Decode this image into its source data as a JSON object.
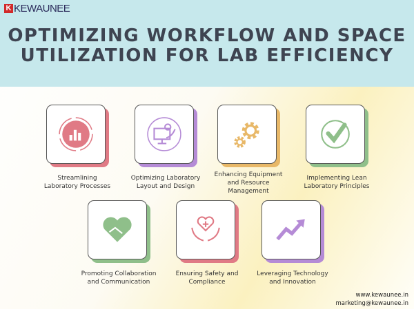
{
  "logo": {
    "brand": "KEWAUNEE",
    "mark": "K"
  },
  "title": [
    "OPTIMIZING WORKFLOW AND SPACE",
    "UTILIZATION FOR LAB EFFICIENCY"
  ],
  "items": [
    {
      "label": [
        "Streamlining",
        "Laboratory Processes"
      ],
      "icon": "bar-chart-icon",
      "color": "#e07a85"
    },
    {
      "label": [
        "Optimizing Laboratory",
        "Layout and Design"
      ],
      "icon": "monitor-gear-icon",
      "color": "#b58bd6"
    },
    {
      "label": [
        "Enhancing Equipment",
        "and Resource",
        "Management"
      ],
      "icon": "gears-icon",
      "color": "#e8b868"
    },
    {
      "label": [
        "Implementing Lean",
        "Laboratory Principles"
      ],
      "icon": "checkmark-icon",
      "color": "#8fbf8a"
    },
    {
      "label": [
        "Promoting Collaboration",
        "and Communication"
      ],
      "icon": "handshake-heart-icon",
      "color": "#8fbf8a"
    },
    {
      "label": [
        "Ensuring Safety and",
        "Compliance"
      ],
      "icon": "hands-heart-icon",
      "color": "#e07a85"
    },
    {
      "label": [
        "Leveraging Technology",
        "and Innovation"
      ],
      "icon": "trend-arrow-icon",
      "color": "#b58bd6"
    }
  ],
  "contact": {
    "website": "www.kewaunee.in",
    "email": "marketing@kewaunee.in"
  }
}
